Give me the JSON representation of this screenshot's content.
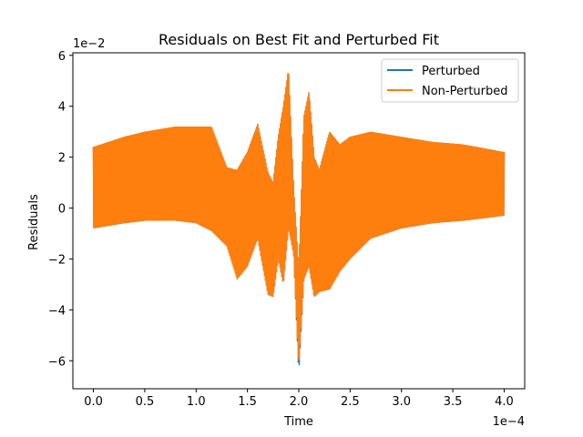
{
  "chart_data": {
    "type": "line",
    "title": "Residuals on Best Fit and Perturbed Fit",
    "xlabel": "Time",
    "ylabel": "Residuals",
    "x_offset_text": "1e−4",
    "y_offset_text": "1e−2",
    "xlim": [
      -0.2,
      4.2
    ],
    "ylim": [
      -7.1,
      6.1
    ],
    "x_ticks": [
      0.0,
      0.5,
      1.0,
      1.5,
      2.0,
      2.5,
      3.0,
      3.5,
      4.0
    ],
    "x_tick_labels": [
      "0.0",
      "0.5",
      "1.0",
      "1.5",
      "2.0",
      "2.5",
      "3.0",
      "3.5",
      "4.0"
    ],
    "y_ticks": [
      -6,
      -4,
      -2,
      0,
      2,
      4,
      6
    ],
    "y_tick_labels": [
      "−6",
      "−4",
      "−2",
      "0",
      "2",
      "4",
      "6"
    ],
    "legend_position": "top-right",
    "grid": false,
    "series": [
      {
        "name": "Perturbed",
        "color": "#1f77b4",
        "envelope_x": [
          0.0,
          0.3,
          0.5,
          0.8,
          1.0,
          1.15,
          1.3,
          1.4,
          1.5,
          1.6,
          1.7,
          1.75,
          1.8,
          1.85,
          1.9,
          1.95,
          2.0,
          2.05,
          2.1,
          2.15,
          2.2,
          2.3,
          2.4,
          2.5,
          2.7,
          3.0,
          3.3,
          3.6,
          4.0
        ],
        "envelope_upper": [
          2.4,
          2.8,
          3.0,
          3.2,
          3.2,
          3.2,
          1.6,
          1.5,
          2.2,
          3.3,
          1.4,
          1.0,
          2.8,
          4.0,
          5.4,
          0.8,
          -2.5,
          3.6,
          4.5,
          2.0,
          1.5,
          3.0,
          2.5,
          2.8,
          3.0,
          2.8,
          2.6,
          2.5,
          2.2
        ],
        "envelope_lower": [
          -0.8,
          -0.6,
          -0.5,
          -0.5,
          -0.6,
          -0.9,
          -1.5,
          -2.8,
          -2.3,
          -1.2,
          -3.4,
          -3.5,
          -2.0,
          -3.0,
          -0.8,
          -1.8,
          -6.5,
          -2.8,
          -2.3,
          -3.5,
          -3.3,
          -3.2,
          -2.5,
          -2.0,
          -1.2,
          -0.8,
          -0.6,
          -0.5,
          -0.3
        ]
      },
      {
        "name": "Non-Perturbed",
        "color": "#ff7f0e",
        "envelope_x": [
          0.0,
          0.3,
          0.5,
          0.8,
          1.0,
          1.15,
          1.3,
          1.4,
          1.5,
          1.6,
          1.7,
          1.75,
          1.8,
          1.85,
          1.9,
          1.95,
          2.0,
          2.05,
          2.1,
          2.15,
          2.2,
          2.3,
          2.4,
          2.5,
          2.7,
          3.0,
          3.3,
          3.6,
          4.0
        ],
        "envelope_upper": [
          2.4,
          2.8,
          3.0,
          3.2,
          3.2,
          3.2,
          1.6,
          1.5,
          2.2,
          3.3,
          1.4,
          1.0,
          2.8,
          4.0,
          5.5,
          0.8,
          -2.5,
          3.6,
          4.6,
          2.0,
          1.5,
          3.0,
          2.5,
          2.8,
          3.0,
          2.8,
          2.6,
          2.5,
          2.2
        ],
        "envelope_lower": [
          -0.8,
          -0.6,
          -0.5,
          -0.5,
          -0.6,
          -0.9,
          -1.5,
          -2.8,
          -2.3,
          -1.2,
          -3.4,
          -3.5,
          -2.0,
          -3.0,
          -0.8,
          -1.8,
          -6.3,
          -2.8,
          -2.3,
          -3.5,
          -3.3,
          -3.2,
          -2.5,
          -2.0,
          -1.2,
          -0.8,
          -0.6,
          -0.5,
          -0.3
        ]
      }
    ]
  }
}
